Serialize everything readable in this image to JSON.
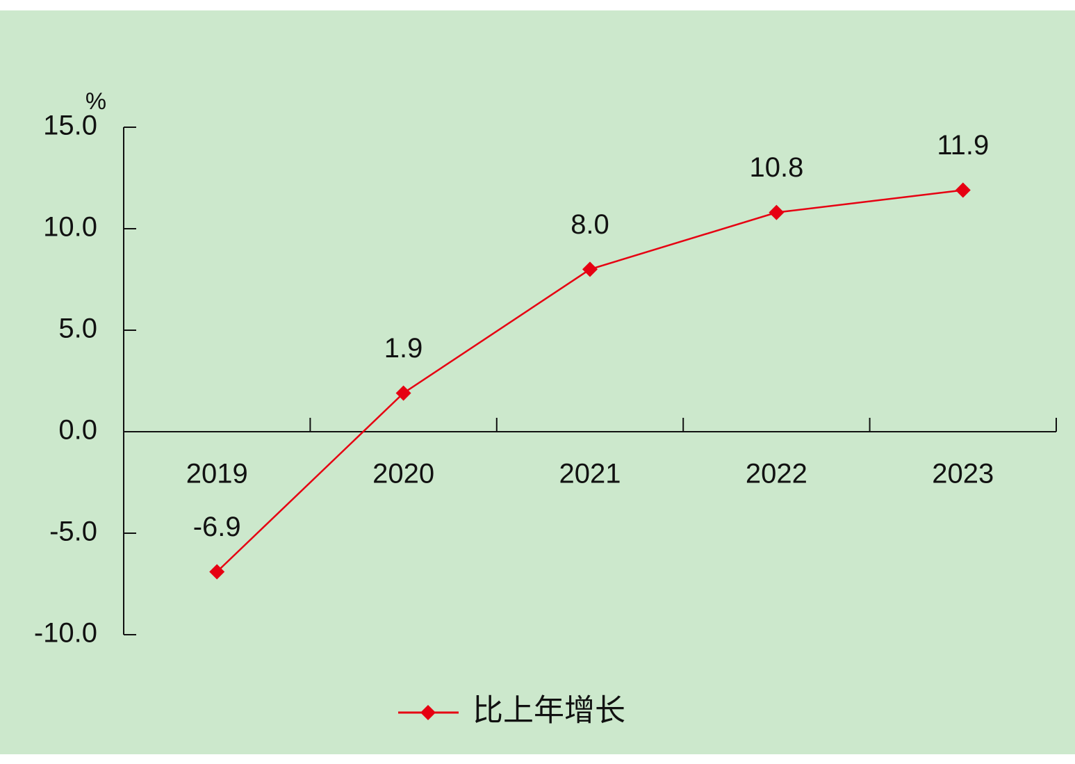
{
  "chart_data": {
    "type": "line",
    "y_label": "%",
    "categories": [
      "2019",
      "2020",
      "2021",
      "2022",
      "2023"
    ],
    "series": [
      {
        "name": "比上年增长",
        "color": "#e60012",
        "values": [
          -6.9,
          1.9,
          8.0,
          10.8,
          11.9
        ],
        "value_labels": [
          "-6.9",
          "1.9",
          "8.0",
          "10.8",
          "11.9"
        ]
      }
    ],
    "ylim": [
      -10,
      15
    ],
    "yticks": [
      {
        "value": -10,
        "label": "-10.0"
      },
      {
        "value": -5,
        "label": "-5.0"
      },
      {
        "value": 0,
        "label": "0.0"
      },
      {
        "value": 5,
        "label": "5.0"
      },
      {
        "value": 10,
        "label": "10.0"
      },
      {
        "value": 15,
        "label": "15.0"
      }
    ],
    "grid": false,
    "legend": "bottom"
  }
}
